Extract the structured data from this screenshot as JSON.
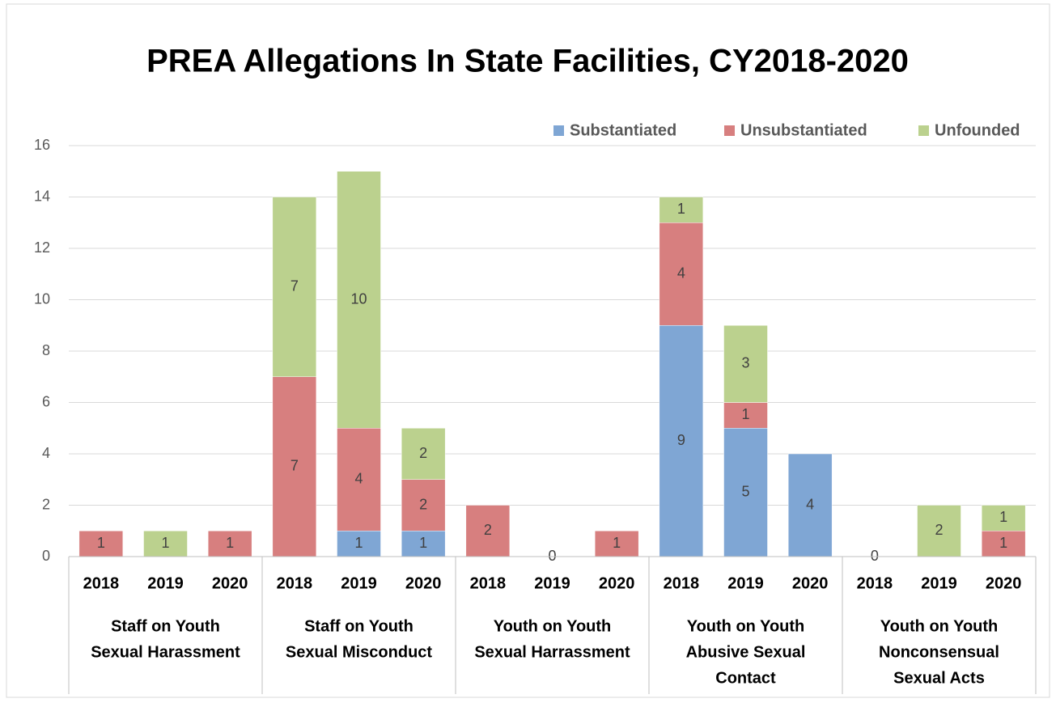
{
  "chart_data": {
    "type": "bar",
    "stacked": true,
    "title": "PREA Allegations In State Facilities, CY2018-2020",
    "categories": [
      "2018",
      "2019",
      "2020",
      "2018",
      "2019",
      "2020",
      "2018",
      "2019",
      "2020",
      "2018",
      "2019",
      "2020",
      "2018",
      "2019",
      "2020"
    ],
    "groups": [
      [
        "Staff on Youth",
        "Sexual Harassment"
      ],
      [
        "Staff on Youth",
        "Sexual Misconduct"
      ],
      [
        "Youth on Youth",
        "Sexual Harrassment"
      ],
      [
        "Youth on Youth",
        "Abusive Sexual",
        "Contact"
      ],
      [
        "Youth on Youth",
        "Nonconsensual",
        "Sexual Acts"
      ]
    ],
    "series": [
      {
        "name": "Substantiated",
        "color": "#7fa6d4",
        "values": [
          null,
          null,
          null,
          null,
          1,
          1,
          null,
          0,
          null,
          9,
          5,
          4,
          0,
          null,
          null
        ]
      },
      {
        "name": "Unsubstantiated",
        "color": "#d77f7f",
        "values": [
          1,
          null,
          1,
          7,
          4,
          2,
          2,
          null,
          1,
          4,
          1,
          null,
          null,
          null,
          1
        ]
      },
      {
        "name": "Unfounded",
        "color": "#bbd18e",
        "values": [
          null,
          1,
          null,
          7,
          10,
          2,
          null,
          null,
          null,
          1,
          3,
          null,
          null,
          2,
          1
        ]
      }
    ],
    "ylim": [
      0,
      16
    ],
    "yticks": [
      0,
      2,
      4,
      6,
      8,
      10,
      12,
      14,
      16
    ],
    "grid": true,
    "legend": "top-right"
  }
}
